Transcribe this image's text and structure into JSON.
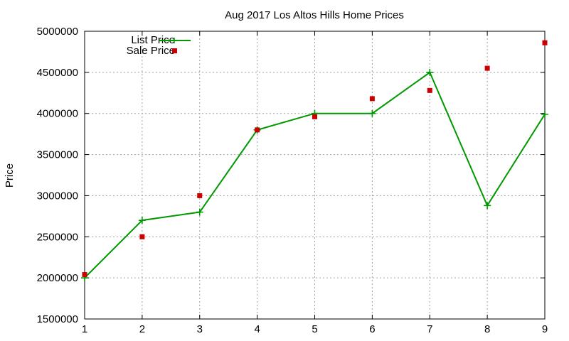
{
  "chart_data": {
    "type": "line",
    "title": "Aug 2017 Los Altos Hills Home Prices",
    "xlabel": "",
    "ylabel": "Price",
    "x": [
      1,
      2,
      3,
      4,
      5,
      6,
      7,
      8,
      9
    ],
    "xlim": [
      1,
      9
    ],
    "ylim": [
      1500000,
      5000000
    ],
    "xticks": [
      "1",
      "2",
      "3",
      "4",
      "5",
      "6",
      "7",
      "8",
      "9"
    ],
    "yticks": [
      "1500000",
      "2000000",
      "2500000",
      "3000000",
      "3500000",
      "4000000",
      "4500000",
      "5000000"
    ],
    "grid": true,
    "legend_position": "top-left",
    "series": [
      {
        "name": "List Price",
        "style": "line-with-plus-markers",
        "color": "#009900",
        "values": [
          2000000,
          2700000,
          2800000,
          3800000,
          4000000,
          4000000,
          4500000,
          2880000,
          3990000
        ]
      },
      {
        "name": "Sale Price",
        "style": "square-markers",
        "color": "#cc0000",
        "values": [
          2040000,
          2500000,
          3000000,
          3800000,
          3960000,
          4180000,
          4280000,
          4550000,
          4860000
        ]
      }
    ]
  }
}
